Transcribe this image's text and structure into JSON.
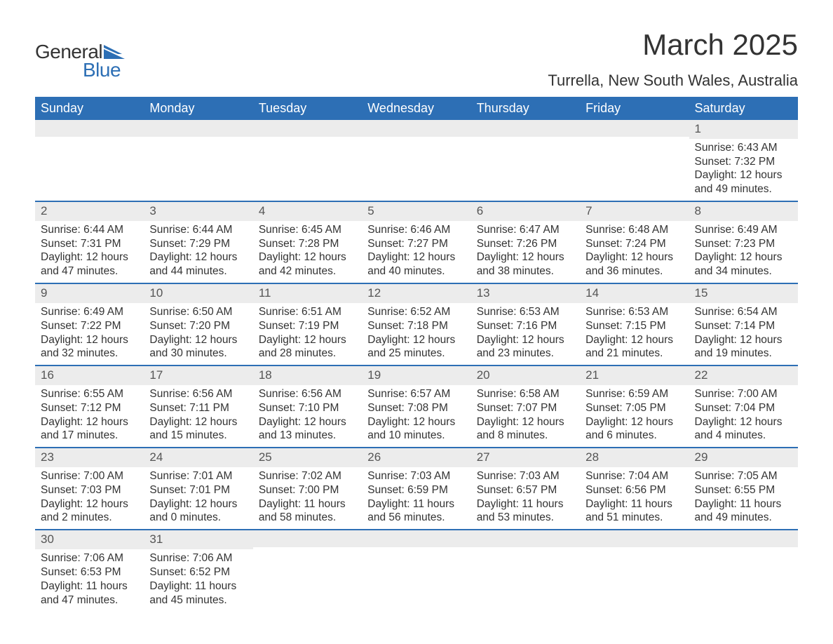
{
  "logo": {
    "text1": "General",
    "text2": "Blue",
    "accent_color": "#2d6fb5"
  },
  "title": "March 2025",
  "location": "Turrella, New South Wales, Australia",
  "colors": {
    "header_bg": "#2d6fb5",
    "header_text": "#ffffff",
    "daynum_bg": "#ececec",
    "border": "#2d6fb5",
    "text": "#333333"
  },
  "day_headers": [
    "Sunday",
    "Monday",
    "Tuesday",
    "Wednesday",
    "Thursday",
    "Friday",
    "Saturday"
  ],
  "weeks": [
    [
      {
        "day": "",
        "sunrise": "",
        "sunset": "",
        "daylight": ""
      },
      {
        "day": "",
        "sunrise": "",
        "sunset": "",
        "daylight": ""
      },
      {
        "day": "",
        "sunrise": "",
        "sunset": "",
        "daylight": ""
      },
      {
        "day": "",
        "sunrise": "",
        "sunset": "",
        "daylight": ""
      },
      {
        "day": "",
        "sunrise": "",
        "sunset": "",
        "daylight": ""
      },
      {
        "day": "",
        "sunrise": "",
        "sunset": "",
        "daylight": ""
      },
      {
        "day": "1",
        "sunrise": "Sunrise: 6:43 AM",
        "sunset": "Sunset: 7:32 PM",
        "daylight": "Daylight: 12 hours and 49 minutes."
      }
    ],
    [
      {
        "day": "2",
        "sunrise": "Sunrise: 6:44 AM",
        "sunset": "Sunset: 7:31 PM",
        "daylight": "Daylight: 12 hours and 47 minutes."
      },
      {
        "day": "3",
        "sunrise": "Sunrise: 6:44 AM",
        "sunset": "Sunset: 7:29 PM",
        "daylight": "Daylight: 12 hours and 44 minutes."
      },
      {
        "day": "4",
        "sunrise": "Sunrise: 6:45 AM",
        "sunset": "Sunset: 7:28 PM",
        "daylight": "Daylight: 12 hours and 42 minutes."
      },
      {
        "day": "5",
        "sunrise": "Sunrise: 6:46 AM",
        "sunset": "Sunset: 7:27 PM",
        "daylight": "Daylight: 12 hours and 40 minutes."
      },
      {
        "day": "6",
        "sunrise": "Sunrise: 6:47 AM",
        "sunset": "Sunset: 7:26 PM",
        "daylight": "Daylight: 12 hours and 38 minutes."
      },
      {
        "day": "7",
        "sunrise": "Sunrise: 6:48 AM",
        "sunset": "Sunset: 7:24 PM",
        "daylight": "Daylight: 12 hours and 36 minutes."
      },
      {
        "day": "8",
        "sunrise": "Sunrise: 6:49 AM",
        "sunset": "Sunset: 7:23 PM",
        "daylight": "Daylight: 12 hours and 34 minutes."
      }
    ],
    [
      {
        "day": "9",
        "sunrise": "Sunrise: 6:49 AM",
        "sunset": "Sunset: 7:22 PM",
        "daylight": "Daylight: 12 hours and 32 minutes."
      },
      {
        "day": "10",
        "sunrise": "Sunrise: 6:50 AM",
        "sunset": "Sunset: 7:20 PM",
        "daylight": "Daylight: 12 hours and 30 minutes."
      },
      {
        "day": "11",
        "sunrise": "Sunrise: 6:51 AM",
        "sunset": "Sunset: 7:19 PM",
        "daylight": "Daylight: 12 hours and 28 minutes."
      },
      {
        "day": "12",
        "sunrise": "Sunrise: 6:52 AM",
        "sunset": "Sunset: 7:18 PM",
        "daylight": "Daylight: 12 hours and 25 minutes."
      },
      {
        "day": "13",
        "sunrise": "Sunrise: 6:53 AM",
        "sunset": "Sunset: 7:16 PM",
        "daylight": "Daylight: 12 hours and 23 minutes."
      },
      {
        "day": "14",
        "sunrise": "Sunrise: 6:53 AM",
        "sunset": "Sunset: 7:15 PM",
        "daylight": "Daylight: 12 hours and 21 minutes."
      },
      {
        "day": "15",
        "sunrise": "Sunrise: 6:54 AM",
        "sunset": "Sunset: 7:14 PM",
        "daylight": "Daylight: 12 hours and 19 minutes."
      }
    ],
    [
      {
        "day": "16",
        "sunrise": "Sunrise: 6:55 AM",
        "sunset": "Sunset: 7:12 PM",
        "daylight": "Daylight: 12 hours and 17 minutes."
      },
      {
        "day": "17",
        "sunrise": "Sunrise: 6:56 AM",
        "sunset": "Sunset: 7:11 PM",
        "daylight": "Daylight: 12 hours and 15 minutes."
      },
      {
        "day": "18",
        "sunrise": "Sunrise: 6:56 AM",
        "sunset": "Sunset: 7:10 PM",
        "daylight": "Daylight: 12 hours and 13 minutes."
      },
      {
        "day": "19",
        "sunrise": "Sunrise: 6:57 AM",
        "sunset": "Sunset: 7:08 PM",
        "daylight": "Daylight: 12 hours and 10 minutes."
      },
      {
        "day": "20",
        "sunrise": "Sunrise: 6:58 AM",
        "sunset": "Sunset: 7:07 PM",
        "daylight": "Daylight: 12 hours and 8 minutes."
      },
      {
        "day": "21",
        "sunrise": "Sunrise: 6:59 AM",
        "sunset": "Sunset: 7:05 PM",
        "daylight": "Daylight: 12 hours and 6 minutes."
      },
      {
        "day": "22",
        "sunrise": "Sunrise: 7:00 AM",
        "sunset": "Sunset: 7:04 PM",
        "daylight": "Daylight: 12 hours and 4 minutes."
      }
    ],
    [
      {
        "day": "23",
        "sunrise": "Sunrise: 7:00 AM",
        "sunset": "Sunset: 7:03 PM",
        "daylight": "Daylight: 12 hours and 2 minutes."
      },
      {
        "day": "24",
        "sunrise": "Sunrise: 7:01 AM",
        "sunset": "Sunset: 7:01 PM",
        "daylight": "Daylight: 12 hours and 0 minutes."
      },
      {
        "day": "25",
        "sunrise": "Sunrise: 7:02 AM",
        "sunset": "Sunset: 7:00 PM",
        "daylight": "Daylight: 11 hours and 58 minutes."
      },
      {
        "day": "26",
        "sunrise": "Sunrise: 7:03 AM",
        "sunset": "Sunset: 6:59 PM",
        "daylight": "Daylight: 11 hours and 56 minutes."
      },
      {
        "day": "27",
        "sunrise": "Sunrise: 7:03 AM",
        "sunset": "Sunset: 6:57 PM",
        "daylight": "Daylight: 11 hours and 53 minutes."
      },
      {
        "day": "28",
        "sunrise": "Sunrise: 7:04 AM",
        "sunset": "Sunset: 6:56 PM",
        "daylight": "Daylight: 11 hours and 51 minutes."
      },
      {
        "day": "29",
        "sunrise": "Sunrise: 7:05 AM",
        "sunset": "Sunset: 6:55 PM",
        "daylight": "Daylight: 11 hours and 49 minutes."
      }
    ],
    [
      {
        "day": "30",
        "sunrise": "Sunrise: 7:06 AM",
        "sunset": "Sunset: 6:53 PM",
        "daylight": "Daylight: 11 hours and 47 minutes."
      },
      {
        "day": "31",
        "sunrise": "Sunrise: 7:06 AM",
        "sunset": "Sunset: 6:52 PM",
        "daylight": "Daylight: 11 hours and 45 minutes."
      },
      {
        "day": "",
        "sunrise": "",
        "sunset": "",
        "daylight": ""
      },
      {
        "day": "",
        "sunrise": "",
        "sunset": "",
        "daylight": ""
      },
      {
        "day": "",
        "sunrise": "",
        "sunset": "",
        "daylight": ""
      },
      {
        "day": "",
        "sunrise": "",
        "sunset": "",
        "daylight": ""
      },
      {
        "day": "",
        "sunrise": "",
        "sunset": "",
        "daylight": ""
      }
    ]
  ]
}
